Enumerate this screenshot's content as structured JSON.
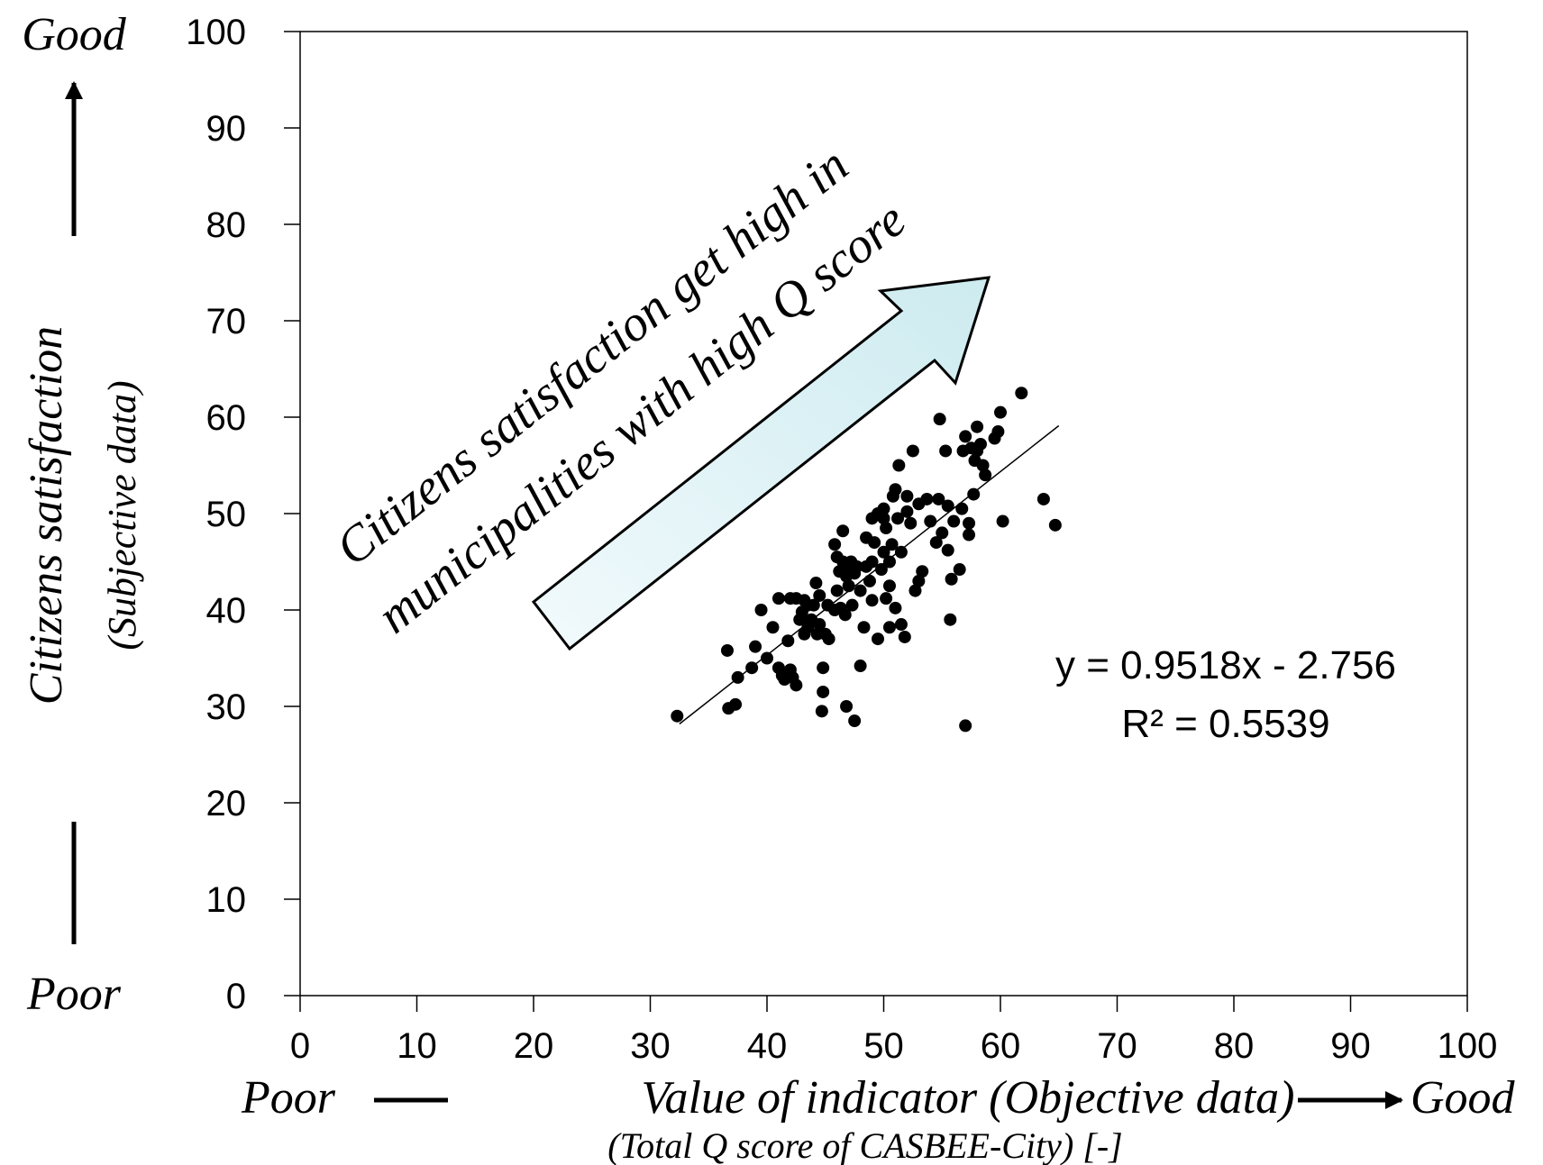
{
  "chart_data": {
    "type": "scatter",
    "title": "",
    "xlabel": "Value of indicator (Objective data)",
    "xlabel_sub": "(Total Q score of CASBEE-City) [-]",
    "ylabel": "Citizens satisfaction",
    "ylabel_sub": "(Subjective data)",
    "x_poor": "Poor",
    "x_good": "Good",
    "y_poor": "Poor",
    "y_good": "Good",
    "xlim": [
      0,
      100
    ],
    "ylim": [
      0,
      100
    ],
    "xticks": [
      "0",
      "10",
      "20",
      "30",
      "40",
      "50",
      "60",
      "70",
      "80",
      "90",
      "100"
    ],
    "yticks": [
      "0",
      "10",
      "20",
      "30",
      "40",
      "50",
      "60",
      "70",
      "80",
      "90",
      "100"
    ],
    "grid": false,
    "annotation_line1": "Citizens satisfaction get high in",
    "annotation_line2": "municipalities with high Q score",
    "trendline": {
      "slope": 0.9518,
      "intercept": -2.756,
      "x_range": [
        32.5,
        65
      ]
    },
    "equation": "y = 0.9518x - 2.756",
    "r_squared": "R² = 0.5539",
    "colors": {
      "points": "#000000",
      "arrow_fill": "#dff1f5",
      "arrow_stroke": "#000000"
    },
    "points": [
      [
        32.3,
        29.0
      ],
      [
        36.6,
        35.8
      ],
      [
        36.7,
        29.8
      ],
      [
        37.3,
        30.2
      ],
      [
        37.5,
        33.0
      ],
      [
        38.7,
        34.0
      ],
      [
        39.0,
        36.2
      ],
      [
        39.5,
        40.0
      ],
      [
        40.0,
        35.0
      ],
      [
        40.5,
        38.2
      ],
      [
        41.0,
        34.0
      ],
      [
        41.0,
        41.2
      ],
      [
        41.3,
        33.2
      ],
      [
        41.5,
        32.8
      ],
      [
        41.8,
        36.8
      ],
      [
        42.0,
        41.2
      ],
      [
        42.0,
        33.8
      ],
      [
        42.2,
        33.0
      ],
      [
        42.5,
        32.2
      ],
      [
        42.5,
        41.2
      ],
      [
        42.8,
        39.0
      ],
      [
        43.0,
        39.8
      ],
      [
        43.2,
        37.5
      ],
      [
        43.2,
        41.0
      ],
      [
        43.5,
        38.2
      ],
      [
        43.5,
        40.5
      ],
      [
        43.8,
        39.0
      ],
      [
        44.0,
        40.5
      ],
      [
        44.2,
        42.8
      ],
      [
        44.3,
        37.5
      ],
      [
        44.5,
        38.5
      ],
      [
        44.5,
        41.5
      ],
      [
        44.7,
        29.5
      ],
      [
        44.8,
        34.0
      ],
      [
        44.8,
        31.5
      ],
      [
        45.0,
        37.5
      ],
      [
        45.2,
        40.5
      ],
      [
        45.3,
        37.0
      ],
      [
        45.8,
        40.0
      ],
      [
        45.8,
        46.8
      ],
      [
        46.0,
        42.0
      ],
      [
        46.0,
        45.5
      ],
      [
        46.2,
        44.0
      ],
      [
        46.3,
        40.2
      ],
      [
        46.5,
        48.2
      ],
      [
        46.5,
        45.0
      ],
      [
        46.7,
        39.5
      ],
      [
        46.8,
        43.5
      ],
      [
        46.8,
        30.0
      ],
      [
        47.0,
        44.2
      ],
      [
        47.0,
        42.5
      ],
      [
        47.2,
        45.0
      ],
      [
        47.3,
        40.5
      ],
      [
        47.5,
        28.5
      ],
      [
        47.5,
        43.8
      ],
      [
        47.7,
        44.5
      ],
      [
        48.0,
        42.0
      ],
      [
        48.0,
        34.2
      ],
      [
        48.3,
        38.2
      ],
      [
        48.5,
        44.5
      ],
      [
        48.5,
        47.5
      ],
      [
        48.8,
        43.0
      ],
      [
        49.0,
        41.0
      ],
      [
        49.0,
        49.5
      ],
      [
        49.0,
        45.0
      ],
      [
        49.2,
        47.0
      ],
      [
        49.5,
        50.0
      ],
      [
        49.5,
        37.0
      ],
      [
        49.8,
        44.2
      ],
      [
        50.0,
        46.0
      ],
      [
        50.0,
        49.5
      ],
      [
        50.0,
        50.5
      ],
      [
        50.2,
        48.5
      ],
      [
        50.2,
        41.2
      ],
      [
        50.5,
        45.0
      ],
      [
        50.5,
        38.2
      ],
      [
        50.5,
        42.5
      ],
      [
        50.7,
        46.8
      ],
      [
        50.8,
        51.8
      ],
      [
        51.0,
        52.5
      ],
      [
        51.0,
        40.2
      ],
      [
        51.2,
        49.5
      ],
      [
        51.3,
        55.0
      ],
      [
        51.5,
        46.0
      ],
      [
        51.5,
        38.5
      ],
      [
        51.8,
        37.2
      ],
      [
        52.0,
        50.2
      ],
      [
        52.0,
        51.8
      ],
      [
        52.3,
        49.0
      ],
      [
        52.5,
        56.5
      ],
      [
        52.7,
        42.0
      ],
      [
        53.0,
        43.0
      ],
      [
        53.0,
        51.0
      ],
      [
        53.3,
        44.0
      ],
      [
        53.7,
        51.5
      ],
      [
        54.0,
        49.2
      ],
      [
        54.5,
        47.0
      ],
      [
        54.7,
        51.5
      ],
      [
        54.8,
        59.8
      ],
      [
        55.0,
        48.0
      ],
      [
        55.3,
        56.5
      ],
      [
        55.5,
        46.2
      ],
      [
        55.5,
        50.8
      ],
      [
        55.7,
        39.0
      ],
      [
        55.8,
        43.2
      ],
      [
        56.0,
        49.2
      ],
      [
        56.5,
        44.2
      ],
      [
        56.7,
        50.5
      ],
      [
        56.8,
        56.5
      ],
      [
        57.0,
        28.0
      ],
      [
        57.0,
        58.0
      ],
      [
        57.3,
        47.8
      ],
      [
        57.3,
        49.0
      ],
      [
        57.5,
        56.8
      ],
      [
        57.7,
        52.0
      ],
      [
        57.8,
        55.5
      ],
      [
        58.0,
        56.5
      ],
      [
        58.0,
        59.0
      ],
      [
        58.3,
        57.2
      ],
      [
        58.5,
        55.0
      ],
      [
        58.7,
        54.0
      ],
      [
        59.5,
        57.8
      ],
      [
        59.8,
        58.5
      ],
      [
        60.0,
        60.5
      ],
      [
        60.2,
        49.2
      ],
      [
        61.8,
        62.5
      ],
      [
        63.7,
        51.5
      ],
      [
        64.7,
        48.8
      ]
    ]
  }
}
